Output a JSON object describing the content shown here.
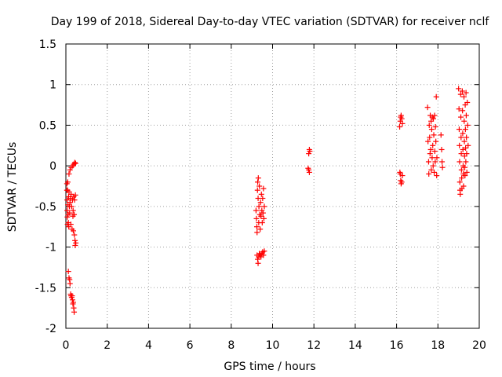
{
  "chart_data": {
    "type": "scatter",
    "title": "Day 199 of 2018, Sidereal Day-to-day VTEC variation (SDTVAR) for receiver nclf",
    "xlabel": "GPS time / hours",
    "ylabel": "SDTVAR / TECUs",
    "xlim": [
      0,
      20
    ],
    "ylim": [
      -2,
      1.5
    ],
    "xticks": [
      0,
      2,
      4,
      6,
      8,
      10,
      12,
      14,
      16,
      18,
      20
    ],
    "yticks": [
      -2,
      -1.5,
      -1,
      -0.5,
      0,
      0.5,
      1,
      1.5
    ],
    "xtick_labels": [
      "0",
      "2",
      "4",
      "6",
      "8",
      "10",
      "12",
      "14",
      "16",
      "18",
      "20"
    ],
    "ytick_labels": [
      "-2",
      "-1.5",
      "-1",
      "-0.5",
      "0",
      "0.5",
      "1",
      "1.5"
    ],
    "grid": true,
    "marker": "+",
    "color": "#ff0000",
    "series": [
      {
        "name": "SDTVAR",
        "points": [
          [
            0.05,
            -0.22
          ],
          [
            0.05,
            -0.3
          ],
          [
            0.06,
            -0.42
          ],
          [
            0.06,
            -0.55
          ],
          [
            0.07,
            -0.63
          ],
          [
            0.08,
            -0.72
          ],
          [
            0.08,
            -0.3
          ],
          [
            0.09,
            -0.2
          ],
          [
            0.1,
            -0.48
          ],
          [
            0.11,
            -0.6
          ],
          [
            0.12,
            -0.7
          ],
          [
            0.13,
            -0.38
          ],
          [
            0.14,
            -0.75
          ],
          [
            0.15,
            -0.32
          ],
          [
            0.15,
            -0.1
          ],
          [
            0.17,
            -0.5
          ],
          [
            0.18,
            -0.58
          ],
          [
            0.2,
            -0.45
          ],
          [
            0.2,
            -0.05
          ],
          [
            0.22,
            -0.4
          ],
          [
            0.24,
            -0.72
          ],
          [
            0.25,
            -0.35
          ],
          [
            0.26,
            -0.02
          ],
          [
            0.28,
            -0.5
          ],
          [
            0.3,
            -0.78
          ],
          [
            0.32,
            -0.42
          ],
          [
            0.33,
            0.0
          ],
          [
            0.34,
            -0.62
          ],
          [
            0.35,
            -0.55
          ],
          [
            0.36,
            -0.8
          ],
          [
            0.38,
            -0.38
          ],
          [
            0.38,
            0.02
          ],
          [
            0.4,
            -0.6
          ],
          [
            0.41,
            -0.85
          ],
          [
            0.42,
            -0.42
          ],
          [
            0.43,
            0.04
          ],
          [
            0.44,
            -0.92
          ],
          [
            0.45,
            -0.98
          ],
          [
            0.46,
            -0.36
          ],
          [
            0.47,
            0.03
          ],
          [
            0.48,
            -0.95
          ],
          [
            0.12,
            -1.3
          ],
          [
            0.15,
            -1.38
          ],
          [
            0.18,
            -1.4
          ],
          [
            0.2,
            -1.45
          ],
          [
            0.23,
            -1.58
          ],
          [
            0.25,
            -1.6
          ],
          [
            0.28,
            -1.62
          ],
          [
            0.3,
            -1.6
          ],
          [
            0.32,
            -1.65
          ],
          [
            0.34,
            -1.7
          ],
          [
            0.36,
            -1.68
          ],
          [
            0.38,
            -1.75
          ],
          [
            0.4,
            -1.8
          ],
          [
            9.2,
            -0.55
          ],
          [
            9.22,
            -0.65
          ],
          [
            9.24,
            -0.75
          ],
          [
            9.25,
            -0.82
          ],
          [
            9.27,
            -0.3
          ],
          [
            9.28,
            -0.2
          ],
          [
            9.3,
            -0.4
          ],
          [
            9.31,
            -0.15
          ],
          [
            9.33,
            -0.7
          ],
          [
            9.34,
            -0.5
          ],
          [
            9.36,
            -0.25
          ],
          [
            9.38,
            -0.6
          ],
          [
            9.4,
            -0.78
          ],
          [
            9.42,
            -0.45
          ],
          [
            9.44,
            -0.62
          ],
          [
            9.46,
            -0.35
          ],
          [
            9.48,
            -0.55
          ],
          [
            9.5,
            -0.7
          ],
          [
            9.52,
            -0.4
          ],
          [
            9.54,
            -0.58
          ],
          [
            9.56,
            -0.28
          ],
          [
            9.58,
            -0.65
          ],
          [
            9.6,
            -0.5
          ],
          [
            9.25,
            -1.1
          ],
          [
            9.28,
            -1.15
          ],
          [
            9.3,
            -1.2
          ],
          [
            9.33,
            -1.12
          ],
          [
            9.36,
            -1.08
          ],
          [
            9.4,
            -1.1
          ],
          [
            9.44,
            -1.12
          ],
          [
            9.48,
            -1.08
          ],
          [
            9.52,
            -1.06
          ],
          [
            9.56,
            -1.1
          ],
          [
            9.6,
            -1.05
          ],
          [
            11.75,
            0.15
          ],
          [
            11.78,
            0.2
          ],
          [
            11.8,
            0.18
          ],
          [
            11.72,
            -0.03
          ],
          [
            11.75,
            -0.05
          ],
          [
            11.78,
            -0.08
          ],
          [
            16.15,
            0.48
          ],
          [
            16.18,
            0.55
          ],
          [
            16.2,
            0.6
          ],
          [
            16.22,
            0.62
          ],
          [
            16.25,
            0.58
          ],
          [
            16.28,
            0.52
          ],
          [
            16.16,
            -0.08
          ],
          [
            16.18,
            -0.1
          ],
          [
            16.2,
            -0.18
          ],
          [
            16.22,
            -0.22
          ],
          [
            16.25,
            -0.2
          ],
          [
            16.28,
            -0.12
          ],
          [
            17.5,
            0.72
          ],
          [
            17.52,
            0.3
          ],
          [
            17.55,
            0.05
          ],
          [
            17.56,
            -0.1
          ],
          [
            17.58,
            0.5
          ],
          [
            17.6,
            0.35
          ],
          [
            17.62,
            0.15
          ],
          [
            17.63,
            0.62
          ],
          [
            17.65,
            0.2
          ],
          [
            17.67,
            0.55
          ],
          [
            17.68,
            -0.05
          ],
          [
            17.7,
            0.45
          ],
          [
            17.72,
            0.1
          ],
          [
            17.73,
            0.6
          ],
          [
            17.75,
            0.25
          ],
          [
            17.77,
            0.0
          ],
          [
            17.78,
            0.58
          ],
          [
            17.8,
            0.38
          ],
          [
            17.82,
            -0.08
          ],
          [
            17.84,
            0.62
          ],
          [
            17.85,
            0.18
          ],
          [
            17.87,
            0.05
          ],
          [
            17.88,
            0.48
          ],
          [
            17.9,
            0.3
          ],
          [
            17.92,
            0.85
          ],
          [
            17.94,
            -0.12
          ],
          [
            17.95,
            0.1
          ],
          [
            18.15,
            0.38
          ],
          [
            18.18,
            0.2
          ],
          [
            18.2,
            0.05
          ],
          [
            18.22,
            -0.02
          ],
          [
            19.0,
            0.95
          ],
          [
            19.02,
            0.7
          ],
          [
            19.03,
            0.45
          ],
          [
            19.04,
            0.25
          ],
          [
            19.05,
            0.05
          ],
          [
            19.06,
            -0.2
          ],
          [
            19.07,
            -0.3
          ],
          [
            19.08,
            -0.35
          ],
          [
            19.1,
            0.88
          ],
          [
            19.11,
            0.6
          ],
          [
            19.12,
            0.35
          ],
          [
            19.13,
            0.15
          ],
          [
            19.14,
            -0.05
          ],
          [
            19.15,
            -0.15
          ],
          [
            19.16,
            -0.28
          ],
          [
            19.18,
            0.92
          ],
          [
            19.19,
            0.68
          ],
          [
            19.2,
            0.4
          ],
          [
            19.21,
            0.2
          ],
          [
            19.22,
            0.0
          ],
          [
            19.23,
            -0.1
          ],
          [
            19.24,
            -0.25
          ],
          [
            19.26,
            0.85
          ],
          [
            19.27,
            0.55
          ],
          [
            19.28,
            0.3
          ],
          [
            19.29,
            0.12
          ],
          [
            19.3,
            -0.02
          ],
          [
            19.31,
            -0.12
          ],
          [
            19.32,
            0.75
          ],
          [
            19.33,
            0.45
          ],
          [
            19.34,
            0.22
          ],
          [
            19.35,
            0.05
          ],
          [
            19.36,
            0.9
          ],
          [
            19.37,
            0.62
          ],
          [
            19.38,
            0.35
          ],
          [
            19.39,
            0.15
          ],
          [
            19.4,
            -0.08
          ],
          [
            19.42,
            0.78
          ],
          [
            19.44,
            0.5
          ],
          [
            19.46,
            0.25
          ]
        ]
      }
    ]
  }
}
